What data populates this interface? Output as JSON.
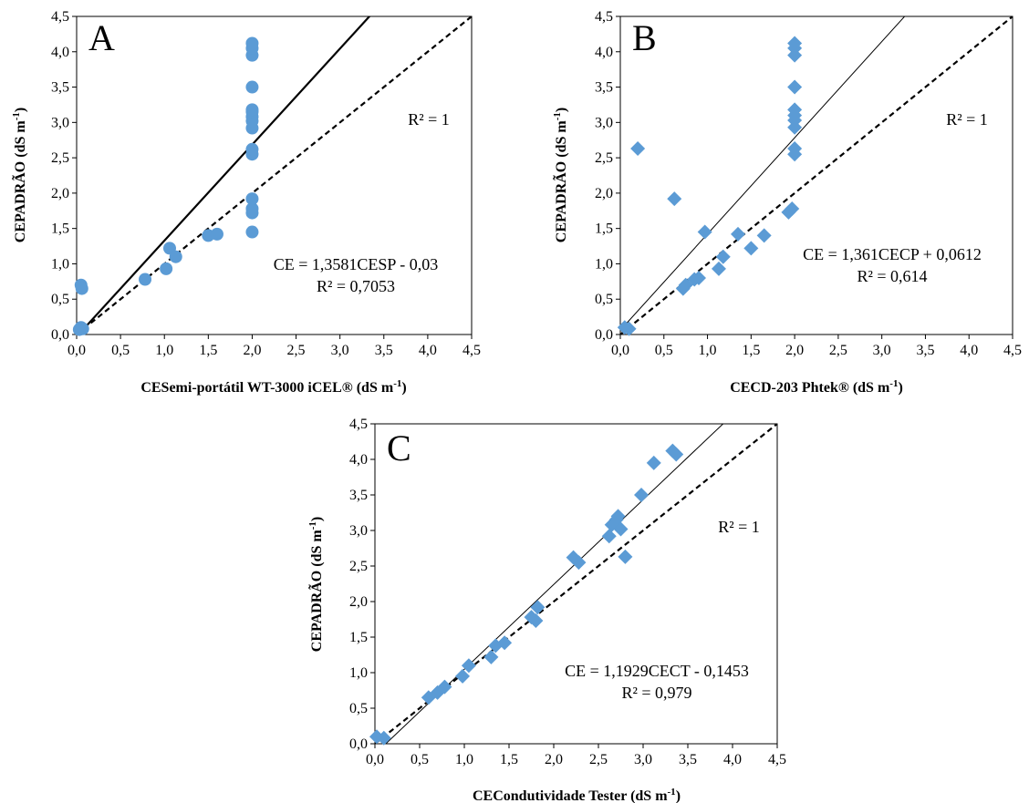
{
  "chart_data": [
    {
      "type": "scatter",
      "panel": "A",
      "marker": "circle",
      "xlabel": "CESemi-portátil WT-3000 iCEL® (dS m-1)",
      "xlabel_parts": {
        "main": "CESemi-portátil WT-3000 iCEL® (dS m",
        "sup": "-1",
        "end": ")"
      },
      "ylabel": "CEPADRÃO (dS m-1)",
      "ylabel_parts": {
        "main": "CEPADRÃO (dS m",
        "sup": "-1",
        "end": ")"
      },
      "xlim": [
        0,
        4.5
      ],
      "ylim": [
        0,
        4.5
      ],
      "xticks": [
        "0,0",
        "0,5",
        "1,0",
        "1,5",
        "2,0",
        "2,5",
        "3,0",
        "3,5",
        "4,0",
        "4,5"
      ],
      "yticks": [
        "0,0",
        "0,5",
        "1,0",
        "1,5",
        "2,0",
        "2,5",
        "3,0",
        "3,5",
        "4,0",
        "4,5"
      ],
      "grid": false,
      "points": [
        [
          0.05,
          0.1
        ],
        [
          0.07,
          0.08
        ],
        [
          0.03,
          0.07
        ],
        [
          0.05,
          0.7
        ],
        [
          0.06,
          0.65
        ],
        [
          0.78,
          0.78
        ],
        [
          1.02,
          0.93
        ],
        [
          1.06,
          1.22
        ],
        [
          1.13,
          1.1
        ],
        [
          1.5,
          1.4
        ],
        [
          1.6,
          1.42
        ],
        [
          2.0,
          1.45
        ],
        [
          2.0,
          1.72
        ],
        [
          2.0,
          1.78
        ],
        [
          2.0,
          1.92
        ],
        [
          2.0,
          2.55
        ],
        [
          2.0,
          2.62
        ],
        [
          2.0,
          2.92
        ],
        [
          2.0,
          3.02
        ],
        [
          2.0,
          3.08
        ],
        [
          2.0,
          3.15
        ],
        [
          2.0,
          3.18
        ],
        [
          2.0,
          3.5
        ],
        [
          2.0,
          3.95
        ],
        [
          2.0,
          4.05
        ],
        [
          2.0,
          4.12
        ]
      ],
      "trendline": {
        "slope": 1.3581,
        "intercept": -0.03,
        "style": "solid",
        "width": 2.2
      },
      "reference_line": {
        "slope": 1,
        "intercept": 0,
        "style": "dashed"
      },
      "trend_equation": "CE = 1,3581CESP - 0,03",
      "trend_r2": "R² = 0,7053",
      "reference_r2": "R² = 1",
      "color": "#5b9bd5"
    },
    {
      "type": "scatter",
      "panel": "B",
      "marker": "diamond",
      "xlabel": "CECD-203 Phtek® (dS m-1)",
      "xlabel_parts": {
        "main": "CECD-203 Phtek® (dS m",
        "sup": "-1",
        "end": ")"
      },
      "ylabel": "CEPADRÃO (dS m-1)",
      "ylabel_parts": {
        "main": "CEPADRÃO (dS m",
        "sup": "-1",
        "end": ")"
      },
      "xlim": [
        0,
        4.5
      ],
      "ylim": [
        0,
        4.5
      ],
      "xticks": [
        "0,0",
        "0,5",
        "1,0",
        "1,5",
        "2,0",
        "2,5",
        "3,0",
        "3,5",
        "4,0",
        "4,5"
      ],
      "yticks": [
        "0,0",
        "0,5",
        "1,0",
        "1,5",
        "2,0",
        "2,5",
        "3,0",
        "3,5",
        "4,0",
        "4,5"
      ],
      "grid": false,
      "points": [
        [
          0.05,
          0.1
        ],
        [
          0.1,
          0.08
        ],
        [
          0.2,
          2.63
        ],
        [
          0.62,
          1.92
        ],
        [
          0.97,
          1.45
        ],
        [
          0.72,
          0.65
        ],
        [
          0.75,
          0.7
        ],
        [
          0.85,
          0.78
        ],
        [
          0.9,
          0.8
        ],
        [
          1.13,
          0.93
        ],
        [
          1.18,
          1.1
        ],
        [
          1.35,
          1.42
        ],
        [
          1.5,
          1.22
        ],
        [
          1.65,
          1.4
        ],
        [
          1.93,
          1.73
        ],
        [
          1.97,
          1.78
        ],
        [
          2.0,
          2.55
        ],
        [
          2.0,
          2.63
        ],
        [
          2.0,
          2.93
        ],
        [
          2.0,
          3.03
        ],
        [
          2.0,
          3.1
        ],
        [
          2.0,
          3.18
        ],
        [
          2.0,
          3.5
        ],
        [
          2.0,
          3.95
        ],
        [
          2.0,
          4.05
        ],
        [
          2.0,
          4.12
        ]
      ],
      "trendline": {
        "slope": 1.361,
        "intercept": 0.0612,
        "style": "solid",
        "width": 1
      },
      "reference_line": {
        "slope": 1,
        "intercept": 0,
        "style": "dashed"
      },
      "trend_equation": "CE = 1,361CECP + 0,0612",
      "trend_r2": "R² = 0,614",
      "reference_r2": "R² = 1",
      "color": "#5b9bd5"
    },
    {
      "type": "scatter",
      "panel": "C",
      "marker": "diamond",
      "xlabel": "CECondutividade Tester (dS m-1)",
      "xlabel_parts": {
        "main": "CECondutividade Tester  (dS m",
        "sup": "-1",
        "end": ")"
      },
      "ylabel": "CEPADRÃO (dS m-1)",
      "ylabel_parts": {
        "main": "CEPADRÃO (dS m",
        "sup": "-1",
        "end": ")"
      },
      "xlim": [
        0,
        4.5
      ],
      "ylim": [
        0,
        4.5
      ],
      "xticks": [
        "0,0",
        "0,5",
        "1,0",
        "1,5",
        "2,0",
        "2,5",
        "3,0",
        "3,5",
        "4,0",
        "4,5"
      ],
      "yticks": [
        "0,0",
        "0,5",
        "1,0",
        "1,5",
        "2,0",
        "2,5",
        "3,0",
        "3,5",
        "4,0",
        "4,5"
      ],
      "grid": false,
      "points": [
        [
          0.02,
          0.1
        ],
        [
          0.1,
          0.08
        ],
        [
          0.6,
          0.65
        ],
        [
          0.7,
          0.72
        ],
        [
          0.78,
          0.8
        ],
        [
          0.98,
          0.95
        ],
        [
          1.05,
          1.1
        ],
        [
          1.3,
          1.22
        ],
        [
          1.35,
          1.38
        ],
        [
          1.45,
          1.42
        ],
        [
          1.75,
          1.78
        ],
        [
          1.8,
          1.73
        ],
        [
          1.82,
          1.92
        ],
        [
          2.22,
          2.62
        ],
        [
          2.28,
          2.55
        ],
        [
          2.62,
          2.92
        ],
        [
          2.65,
          3.08
        ],
        [
          2.7,
          3.15
        ],
        [
          2.72,
          3.2
        ],
        [
          2.75,
          3.02
        ],
        [
          2.8,
          2.63
        ],
        [
          2.98,
          3.5
        ],
        [
          3.12,
          3.95
        ],
        [
          3.33,
          4.12
        ],
        [
          3.37,
          4.07
        ]
      ],
      "trendline": {
        "slope": 1.1929,
        "intercept": -0.1453,
        "style": "solid",
        "width": 1
      },
      "reference_line": {
        "slope": 1,
        "intercept": 0,
        "style": "dashed"
      },
      "trend_equation": "CE = 1,1929CECT - 0,1453",
      "trend_r2": "R² = 0,979",
      "reference_r2": "R² = 1",
      "color": "#5b9bd5"
    }
  ]
}
